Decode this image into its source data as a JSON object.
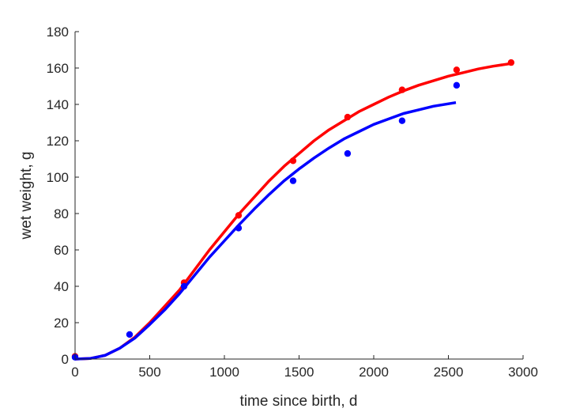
{
  "chart_data": {
    "type": "scatter",
    "title": "",
    "xlabel": "time since birth, d",
    "ylabel": "wet weight, g",
    "xlim": [
      0,
      3000
    ],
    "ylim": [
      0,
      180
    ],
    "xticks": [
      0,
      500,
      1000,
      1500,
      2000,
      2500,
      3000
    ],
    "yticks": [
      0,
      20,
      40,
      60,
      80,
      100,
      120,
      140,
      160,
      180
    ],
    "grid": false,
    "legend": "none",
    "series": [
      {
        "color": "#ff0000",
        "points": {
          "x": [
            0,
            730,
            1095,
            1460,
            1825,
            2190,
            2555,
            2920
          ],
          "y": [
            1.5,
            42,
            79,
            109,
            133,
            148,
            159,
            163
          ]
        },
        "fit": {
          "x": [
            0,
            100,
            200,
            300,
            400,
            500,
            600,
            700,
            800,
            900,
            1000,
            1100,
            1200,
            1300,
            1400,
            1500,
            1600,
            1700,
            1800,
            1900,
            2000,
            2100,
            2200,
            2300,
            2400,
            2500,
            2600,
            2700,
            2800,
            2920
          ],
          "y": [
            0,
            0.3,
            2,
            6,
            12,
            20,
            29,
            38,
            49,
            60,
            70,
            80,
            89,
            98,
            106,
            113,
            120,
            126,
            131,
            136,
            140,
            144,
            147.5,
            150.5,
            153,
            155.5,
            157.5,
            159.5,
            161,
            162.5
          ]
        }
      },
      {
        "color": "#0000ff",
        "points": {
          "x": [
            0,
            365,
            730,
            1095,
            1460,
            1825,
            2190,
            2555
          ],
          "y": [
            1,
            13.5,
            40,
            72,
            98,
            113,
            131,
            150.5
          ]
        },
        "fit": {
          "x": [
            0,
            100,
            200,
            300,
            400,
            500,
            600,
            700,
            800,
            900,
            1000,
            1100,
            1200,
            1300,
            1400,
            1500,
            1600,
            1700,
            1800,
            1900,
            2000,
            2100,
            2200,
            2300,
            2400,
            2550
          ],
          "y": [
            0,
            0.3,
            2,
            6,
            11.5,
            19,
            27,
            36,
            46,
            56,
            65,
            74,
            82.5,
            90.5,
            98,
            104.5,
            110.5,
            116,
            121,
            125,
            129,
            132,
            135,
            137,
            139,
            141
          ]
        }
      }
    ]
  }
}
